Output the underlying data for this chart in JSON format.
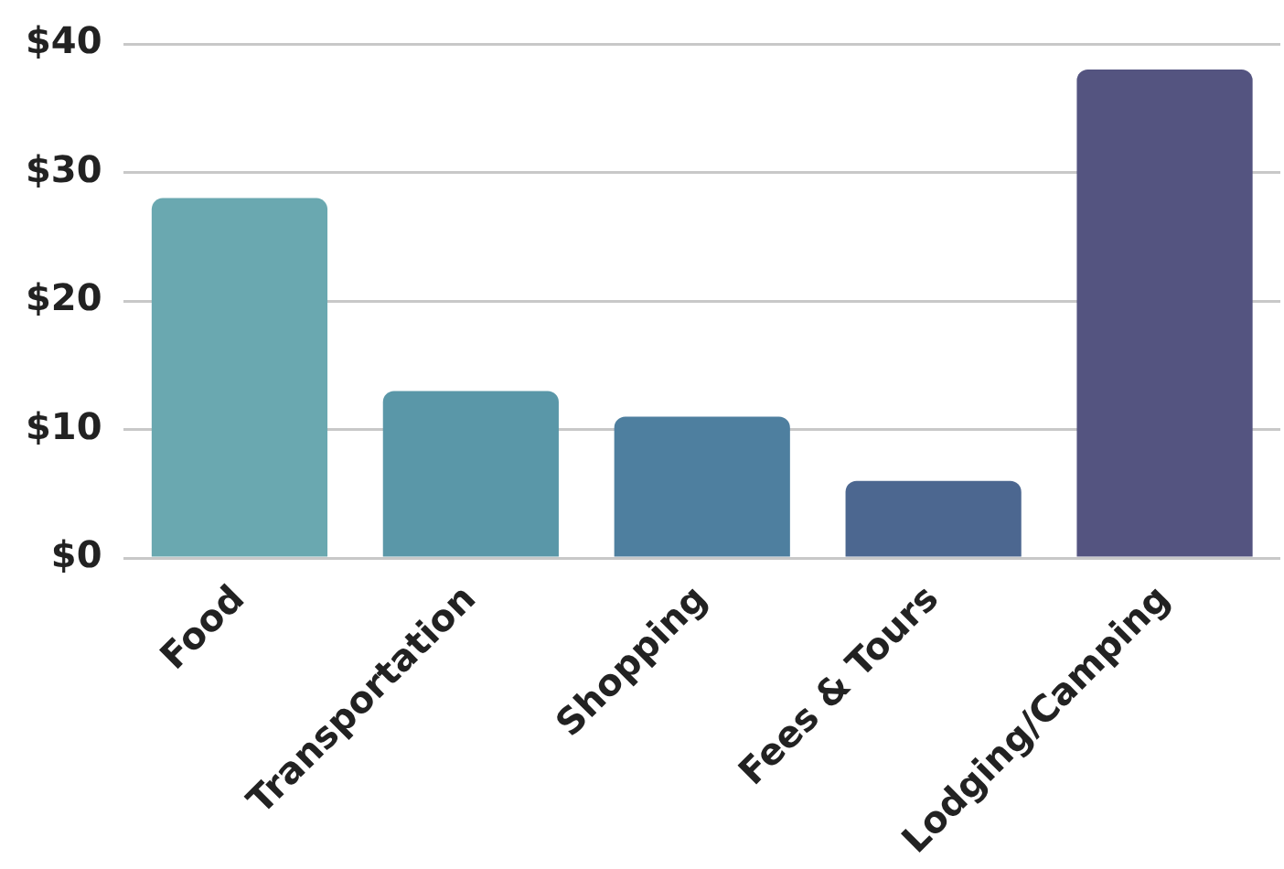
{
  "chart_data": {
    "type": "bar",
    "categories": [
      "Food",
      "Transportation",
      "Shopping",
      "Fees & Tours",
      "Lodging/Camping"
    ],
    "values": [
      28,
      13,
      11,
      6,
      38
    ],
    "colors": [
      "#6aa8b0",
      "#5a97a8",
      "#4e7f9f",
      "#4c6790",
      "#545480"
    ],
    "ylim": [
      0,
      40
    ],
    "yticks": [
      {
        "value": 0,
        "label": "$0"
      },
      {
        "value": 10,
        "label": "$10"
      },
      {
        "value": 20,
        "label": "$20"
      },
      {
        "value": 30,
        "label": "$30"
      },
      {
        "value": 40,
        "label": "$40"
      }
    ],
    "grid": "y",
    "legend": false
  }
}
